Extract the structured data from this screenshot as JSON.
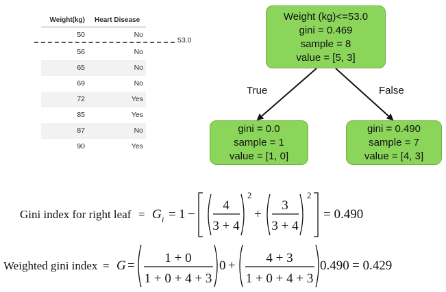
{
  "table": {
    "headers": [
      "Weight(kg)",
      "Heart Disease"
    ],
    "rows": [
      [
        "50",
        "No"
      ],
      [
        "56",
        "No"
      ],
      [
        "65",
        "No"
      ],
      [
        "69",
        "No"
      ],
      [
        "72",
        "Yes"
      ],
      [
        "85",
        "Yes"
      ],
      [
        "87",
        "No"
      ],
      [
        "90",
        "Yes"
      ]
    ],
    "split_label": "53.0"
  },
  "tree": {
    "root": [
      "Weight (kg)<=53.0",
      "gini = 0.469",
      "sample = 8",
      "value = [5, 3]"
    ],
    "left": [
      "gini = 0.0",
      "sample = 1",
      "value = [1, 0]"
    ],
    "right": [
      "gini = 0.490",
      "sample = 7",
      "value = [4, 3]"
    ],
    "true_label": "True",
    "false_label": "False",
    "node_color": "#8bd65a"
  },
  "formula1": {
    "label": "Gini index for right leaf",
    "eq": "=",
    "symbol": "G",
    "subscript": "i",
    "one": "1",
    "minus": "−",
    "plus": "+",
    "num1": "4",
    "num2": "3",
    "den": "3 + 4",
    "exponent": "2",
    "result": "= 0.490"
  },
  "formula2": {
    "label": "Weighted gini index",
    "eq": "=",
    "symbol": "G",
    "num1": "1 + 0",
    "den": "1 + 0 + 4 + 3",
    "factor1": "0",
    "plus": "+",
    "num2": "4 + 3",
    "factor2": "0.490",
    "result": "= 0.429"
  }
}
